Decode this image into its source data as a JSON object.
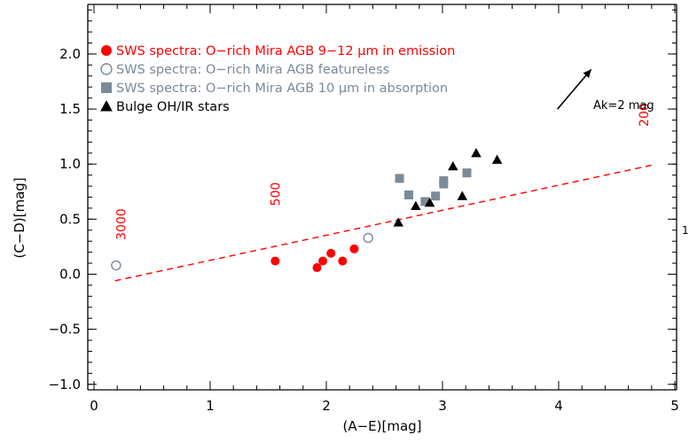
{
  "chart_data": {
    "type": "scatter",
    "title": "",
    "xlabel": "(A−E)[mag]",
    "ylabel": "(C−D)[mag]",
    "xlim": [
      0,
      5
    ],
    "ylim": [
      -1.05,
      2.45
    ],
    "xticks": [
      0,
      1,
      2,
      3,
      4,
      5
    ],
    "yticks": [
      -1.0,
      -0.5,
      0.0,
      0.5,
      1.0,
      1.5,
      2.0
    ],
    "grid": false,
    "legend_position": "top-left",
    "series": [
      {
        "name": "SWS spectra: O−rich Mira AGB 9−12 μm in emission",
        "marker": "filled-circle",
        "color": "#ff0000",
        "points": [
          [
            1.56,
            0.12
          ],
          [
            1.92,
            0.06
          ],
          [
            1.97,
            0.12
          ],
          [
            2.04,
            0.19
          ],
          [
            2.14,
            0.12
          ],
          [
            2.24,
            0.23
          ]
        ]
      },
      {
        "name": "SWS spectra: O−rich Mira AGB featureless",
        "marker": "open-circle",
        "color": "#7a8a99",
        "points": [
          [
            0.19,
            0.08
          ],
          [
            2.36,
            0.33
          ]
        ]
      },
      {
        "name": "SWS spectra: O−rich Mira AGB 10 μm in absorption",
        "marker": "filled-square",
        "color": "#7a8a99",
        "points": [
          [
            2.63,
            0.87
          ],
          [
            2.71,
            0.72
          ],
          [
            2.85,
            0.66
          ],
          [
            2.94,
            0.71
          ],
          [
            3.01,
            0.85
          ],
          [
            3.01,
            0.82
          ],
          [
            3.21,
            0.92
          ]
        ]
      },
      {
        "name": "Bulge OH/IR stars",
        "marker": "filled-triangle",
        "color": "#000000",
        "points": [
          [
            2.62,
            0.47
          ],
          [
            2.77,
            0.62
          ],
          [
            2.89,
            0.65
          ],
          [
            3.09,
            0.98
          ],
          [
            3.17,
            0.71
          ],
          [
            3.29,
            1.1
          ],
          [
            3.47,
            1.04
          ]
        ]
      }
    ],
    "reference_line": {
      "style": "dashed",
      "color": "#ff0000",
      "from": [
        0.18,
        -0.06
      ],
      "to": [
        4.8,
        0.99
      ]
    },
    "temperature_labels": [
      {
        "text": "3000",
        "x": 0.27,
        "y": 0.31
      },
      {
        "text": "500",
        "x": 1.6,
        "y": 0.62
      },
      {
        "text": "200",
        "x": 4.77,
        "y": 1.34
      }
    ],
    "reddening_vector": {
      "label": "Ak=2 mag",
      "from": [
        3.99,
        1.5
      ],
      "to": [
        4.28,
        1.86
      ]
    },
    "right_edge_label": "1"
  }
}
